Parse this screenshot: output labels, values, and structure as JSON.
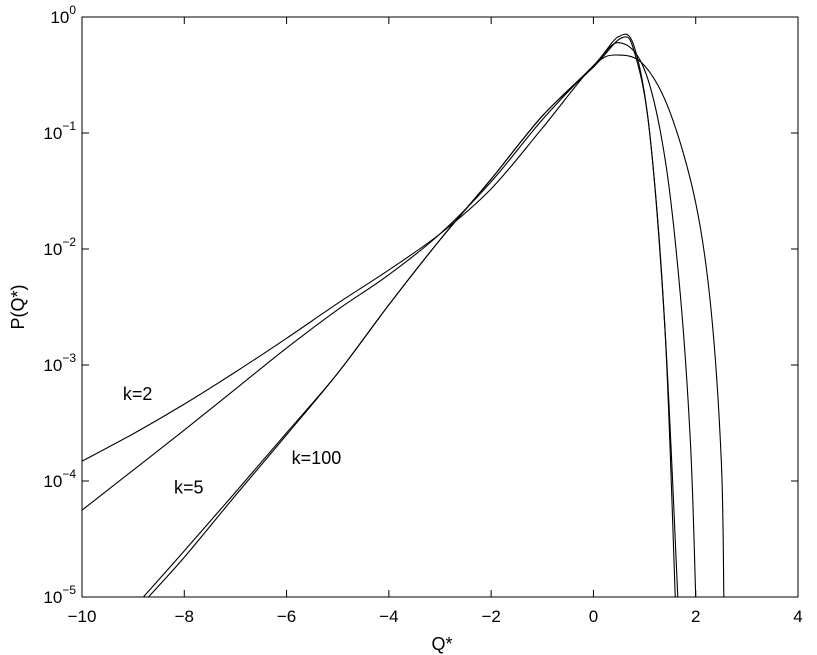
{
  "chart_data": {
    "type": "line",
    "xlabel": "Q*",
    "ylabel": "P(Q*)",
    "xlim": [
      -10,
      4
    ],
    "ylim": [
      1e-05,
      1
    ],
    "yscale": "log",
    "grid": false,
    "x_ticks": [
      -10,
      -8,
      -6,
      -4,
      -2,
      0,
      2,
      4
    ],
    "x_tick_labels": [
      "−10",
      "−8",
      "−6",
      "−4",
      "−2",
      "0",
      "2",
      "4"
    ],
    "y_ticks": [
      {
        "value": 1e-05,
        "base": "10",
        "exp": "−5"
      },
      {
        "value": 0.0001,
        "base": "10",
        "exp": "−4"
      },
      {
        "value": 0.001,
        "base": "10",
        "exp": "−3"
      },
      {
        "value": 0.01,
        "base": "10",
        "exp": "−2"
      },
      {
        "value": 0.1,
        "base": "10",
        "exp": "−1"
      },
      {
        "value": 1,
        "base": "10",
        "exp": "0"
      }
    ],
    "series": [
      {
        "name": "k=2",
        "x": [
          -10,
          -9,
          -8,
          -7,
          -6,
          -5,
          -4,
          -3,
          -2,
          -1,
          0,
          0.5,
          1,
          1.5,
          2,
          2.3,
          2.5,
          2.55
        ],
        "y": [
          0.000148,
          0.000255,
          0.00046,
          0.00087,
          0.0017,
          0.0034,
          0.0066,
          0.0135,
          0.033,
          0.11,
          0.38,
          0.47,
          0.38,
          0.15,
          0.025,
          0.003,
          0.00015,
          1e-05
        ]
      },
      {
        "name": "k=5",
        "x": [
          -10,
          -9,
          -8,
          -7,
          -6,
          -5,
          -4,
          -3,
          -2,
          -1,
          0,
          0.5,
          1,
          1.4,
          1.7,
          1.9,
          2.0
        ],
        "y": [
          5.6e-05,
          0.000124,
          0.000275,
          0.00062,
          0.0014,
          0.003,
          0.006,
          0.0135,
          0.038,
          0.13,
          0.38,
          0.6,
          0.35,
          0.06,
          0.004,
          0.0002,
          1e-05
        ]
      },
      {
        "name": "k=100",
        "x": [
          -8.8,
          -8,
          -7,
          -6,
          -5,
          -4,
          -3,
          -2,
          -1,
          0,
          0.5,
          0.8,
          1.1,
          1.4,
          1.6
        ],
        "y": [
          1e-05,
          2.5e-05,
          8e-05,
          0.00026,
          0.00085,
          0.0033,
          0.012,
          0.04,
          0.14,
          0.38,
          0.68,
          0.55,
          0.1,
          0.002,
          1e-05
        ]
      },
      {
        "name": "",
        "x": [
          -8.7,
          -8,
          -7,
          -6,
          -5,
          -4,
          -3,
          -2,
          -1,
          0,
          0.55,
          0.8,
          1.1,
          1.4,
          1.65
        ],
        "y": [
          1e-05,
          2.2e-05,
          7.5e-05,
          0.00025,
          0.00085,
          0.0033,
          0.012,
          0.04,
          0.14,
          0.37,
          0.66,
          0.5,
          0.1,
          0.002,
          1e-05
        ]
      }
    ],
    "annotations": [
      {
        "text": "k=2",
        "x": -9.2,
        "y": 0.0005
      },
      {
        "text": "k=5",
        "x": -8.2,
        "y": 7.8e-05
      },
      {
        "text": "k=100",
        "x": -5.9,
        "y": 0.00014
      }
    ]
  }
}
